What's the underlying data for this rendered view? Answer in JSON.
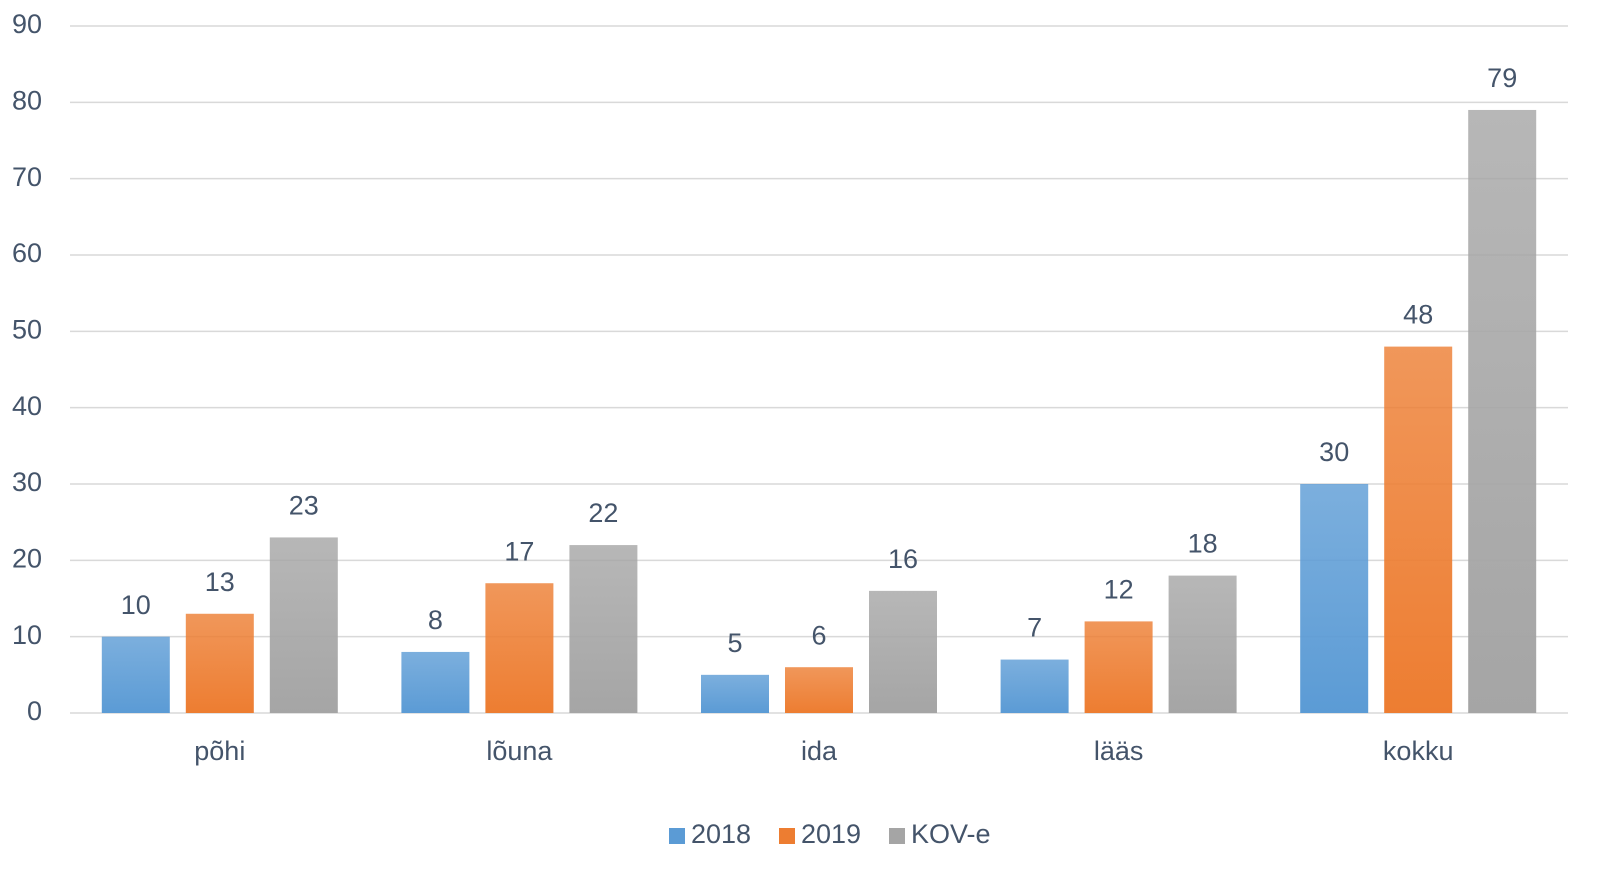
{
  "chart_data": {
    "type": "bar",
    "categories": [
      "põhi",
      "lõuna",
      "ida",
      "lääs",
      "kokku"
    ],
    "series": [
      {
        "name": "2018",
        "color": "#5b9bd5",
        "values": [
          10,
          8,
          5,
          7,
          30
        ]
      },
      {
        "name": "2019",
        "color": "#ed7d31",
        "values": [
          13,
          17,
          6,
          12,
          48
        ]
      },
      {
        "name": "KOV-e",
        "color": "#a5a5a5",
        "values": [
          23,
          22,
          16,
          18,
          79
        ]
      }
    ],
    "ylim": [
      0,
      90
    ],
    "yticks": [
      0,
      10,
      20,
      30,
      40,
      50,
      60,
      70,
      80,
      90
    ],
    "grid": true,
    "legend": "bottom"
  }
}
